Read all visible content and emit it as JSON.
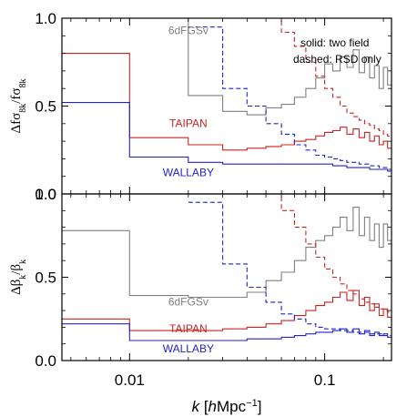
{
  "chart_data": {
    "type": "line",
    "x_scale": "log",
    "xlim": [
      0.0045,
      0.22
    ],
    "xlabel": "k  [hMpc⁻¹]",
    "xlabel_parts": {
      "var": "k",
      "open": "[",
      "unit": "hMpc",
      "exp": "−1",
      "close": "]"
    },
    "x_ticks": [
      0.01,
      0.1
    ],
    "x_tick_labels": [
      "0.01",
      "0.1"
    ],
    "colors": {
      "6dFGSv": "#808080",
      "TAIPAN": "#cc2222",
      "WALLABY": "#2222cc"
    },
    "legend": {
      "line1": "solid: two field",
      "line2": "dashed: RSD only",
      "position": "top-right"
    },
    "panels": [
      {
        "id": "top",
        "ylabel": "Δfσ_8k / fσ_8k",
        "ylabel_parts": {
          "num_pre": "Δfσ",
          "num_sub": "8k",
          "sep": "/fσ",
          "den_sub": "8k"
        },
        "ylim": [
          0.0,
          1.0
        ],
        "y_ticks": [
          0.0,
          0.5,
          1.0
        ],
        "y_tick_labels": [
          "0.0",
          "0.5",
          "1.0"
        ],
        "series": [
          {
            "name": "6dFGSv",
            "style": "solid",
            "edges": [
              0.004,
              0.01,
              0.02,
              0.03,
              0.04,
              0.05,
              0.06,
              0.07,
              0.08,
              0.09,
              0.1,
              0.11,
              0.12,
              0.13,
              0.14,
              0.15,
              0.16,
              0.17,
              0.18,
              0.19,
              0.2,
              0.21,
              0.22
            ],
            "values": [
              1.1,
              1.0,
              0.56,
              0.47,
              0.45,
              0.49,
              0.51,
              0.55,
              0.6,
              0.66,
              0.74,
              0.7,
              0.78,
              0.72,
              0.82,
              0.69,
              0.78,
              0.66,
              0.73,
              0.6,
              0.72,
              0.62
            ]
          },
          {
            "name": "TAIPAN",
            "style": "solid",
            "edges": [
              0.004,
              0.01,
              0.02,
              0.03,
              0.04,
              0.05,
              0.06,
              0.07,
              0.08,
              0.09,
              0.1,
              0.11,
              0.12,
              0.13,
              0.14,
              0.15,
              0.16,
              0.17,
              0.18,
              0.19,
              0.2,
              0.21,
              0.22
            ],
            "values": [
              0.8,
              0.32,
              0.28,
              0.25,
              0.26,
              0.27,
              0.28,
              0.3,
              0.31,
              0.33,
              0.35,
              0.36,
              0.38,
              0.34,
              0.37,
              0.32,
              0.35,
              0.3,
              0.33,
              0.28,
              0.3,
              0.26
            ]
          },
          {
            "name": "WALLABY",
            "style": "solid",
            "edges": [
              0.004,
              0.01,
              0.02,
              0.03,
              0.04,
              0.05,
              0.06,
              0.07,
              0.08,
              0.09,
              0.1,
              0.11,
              0.12,
              0.13,
              0.14,
              0.15,
              0.16,
              0.17,
              0.18,
              0.19,
              0.2,
              0.21,
              0.22
            ],
            "values": [
              0.52,
              0.21,
              0.18,
              0.17,
              0.17,
              0.17,
              0.17,
              0.17,
              0.17,
              0.17,
              0.17,
              0.16,
              0.16,
              0.15,
              0.15,
              0.15,
              0.15,
              0.14,
              0.14,
              0.14,
              0.14,
              0.13
            ]
          },
          {
            "name": "TAIPAN",
            "style": "dashed",
            "edges": [
              0.05,
              0.06,
              0.07,
              0.08,
              0.09,
              0.1,
              0.11,
              0.12,
              0.13,
              0.14,
              0.15,
              0.16,
              0.17,
              0.18,
              0.19,
              0.2,
              0.21,
              0.22
            ],
            "values": [
              1.02,
              0.92,
              0.84,
              0.75,
              0.67,
              0.6,
              0.55,
              0.5,
              0.46,
              0.44,
              0.42,
              0.4,
              0.39,
              0.37,
              0.36,
              0.34,
              0.33
            ]
          },
          {
            "name": "WALLABY",
            "style": "dashed",
            "edges": [
              0.02,
              0.03,
              0.04,
              0.05,
              0.06,
              0.07,
              0.08,
              0.09,
              0.1,
              0.11,
              0.12,
              0.13,
              0.14,
              0.15,
              0.16,
              0.17,
              0.18,
              0.19,
              0.2,
              0.21,
              0.22
            ],
            "values": [
              0.95,
              0.6,
              0.5,
              0.4,
              0.34,
              0.28,
              0.25,
              0.22,
              0.21,
              0.2,
              0.19,
              0.18,
              0.18,
              0.17,
              0.17,
              0.16,
              0.16,
              0.15,
              0.15,
              0.14,
              0.14
            ]
          }
        ],
        "labels": [
          {
            "series": "6dFGSv",
            "text": "6dFGSv",
            "x": 0.02,
            "y": 0.91
          },
          {
            "series": "TAIPAN",
            "text": "TAIPAN",
            "x": 0.02,
            "y": 0.38
          },
          {
            "series": "WALLABY",
            "text": "WALLABY",
            "x": 0.02,
            "y": 0.1
          }
        ]
      },
      {
        "id": "bottom",
        "ylabel": "Δβ_k / β_k",
        "ylabel_parts": {
          "num_pre": "Δβ",
          "num_sub": "k",
          "sep": "/β",
          "den_sub": "k"
        },
        "ylim": [
          0.0,
          1.0
        ],
        "y_ticks": [
          0.0,
          0.5,
          1.0
        ],
        "y_tick_labels": [
          "0.0",
          "0.5",
          "1.0"
        ],
        "series": [
          {
            "name": "6dFGSv",
            "style": "solid",
            "edges": [
              0.004,
              0.01,
              0.02,
              0.03,
              0.04,
              0.05,
              0.06,
              0.07,
              0.08,
              0.09,
              0.1,
              0.11,
              0.12,
              0.13,
              0.14,
              0.15,
              0.16,
              0.17,
              0.18,
              0.19,
              0.2,
              0.21,
              0.22
            ],
            "values": [
              0.78,
              0.39,
              0.38,
              0.38,
              0.41,
              0.48,
              0.53,
              0.6,
              0.68,
              0.72,
              0.75,
              0.8,
              0.86,
              0.78,
              0.92,
              0.75,
              0.86,
              0.72,
              0.82,
              0.68,
              0.82,
              0.72
            ]
          },
          {
            "name": "TAIPAN",
            "style": "solid",
            "edges": [
              0.004,
              0.01,
              0.02,
              0.03,
              0.04,
              0.05,
              0.06,
              0.07,
              0.08,
              0.09,
              0.1,
              0.11,
              0.12,
              0.13,
              0.14,
              0.15,
              0.16,
              0.17,
              0.18,
              0.19,
              0.2,
              0.21,
              0.22
            ],
            "values": [
              0.25,
              0.18,
              0.18,
              0.19,
              0.2,
              0.22,
              0.24,
              0.27,
              0.3,
              0.33,
              0.35,
              0.38,
              0.41,
              0.36,
              0.42,
              0.33,
              0.38,
              0.3,
              0.34,
              0.27,
              0.31,
              0.26
            ]
          },
          {
            "name": "WALLABY",
            "style": "solid",
            "edges": [
              0.004,
              0.01,
              0.02,
              0.03,
              0.04,
              0.05,
              0.06,
              0.07,
              0.08,
              0.09,
              0.1,
              0.11,
              0.12,
              0.13,
              0.14,
              0.15,
              0.16,
              0.17,
              0.18,
              0.19,
              0.2,
              0.21,
              0.22
            ],
            "values": [
              0.22,
              0.12,
              0.12,
              0.12,
              0.13,
              0.13,
              0.14,
              0.15,
              0.16,
              0.17,
              0.17,
              0.18,
              0.19,
              0.17,
              0.19,
              0.16,
              0.18,
              0.15,
              0.17,
              0.15,
              0.16,
              0.14
            ]
          },
          {
            "name": "TAIPAN",
            "style": "dashed",
            "edges": [
              0.05,
              0.06,
              0.07,
              0.08,
              0.09,
              0.1,
              0.11,
              0.12,
              0.13,
              0.14,
              0.15,
              0.16,
              0.17,
              0.18,
              0.19,
              0.2,
              0.21,
              0.22
            ],
            "values": [
              1.02,
              0.9,
              0.8,
              0.7,
              0.62,
              0.55,
              0.5,
              0.46,
              0.42,
              0.4,
              0.37,
              0.35,
              0.34,
              0.32,
              0.31,
              0.3,
              0.29
            ]
          },
          {
            "name": "WALLABY",
            "style": "dashed",
            "edges": [
              0.02,
              0.03,
              0.04,
              0.05,
              0.06,
              0.07,
              0.08,
              0.09,
              0.1,
              0.11,
              0.12,
              0.13,
              0.14,
              0.15,
              0.16,
              0.17,
              0.18,
              0.19,
              0.2,
              0.21,
              0.22
            ],
            "values": [
              0.95,
              0.58,
              0.44,
              0.35,
              0.28,
              0.25,
              0.22,
              0.2,
              0.19,
              0.19,
              0.18,
              0.18,
              0.17,
              0.17,
              0.17,
              0.16,
              0.16,
              0.16,
              0.15,
              0.15,
              0.15
            ]
          }
        ],
        "labels": [
          {
            "series": "6dFGSv",
            "text": "6dFGSv",
            "x": 0.02,
            "y": 0.33
          },
          {
            "series": "TAIPAN",
            "text": "TAIPAN",
            "x": 0.02,
            "y": 0.17
          },
          {
            "series": "WALLABY",
            "text": "WALLABY",
            "x": 0.02,
            "y": 0.05
          }
        ]
      }
    ]
  }
}
